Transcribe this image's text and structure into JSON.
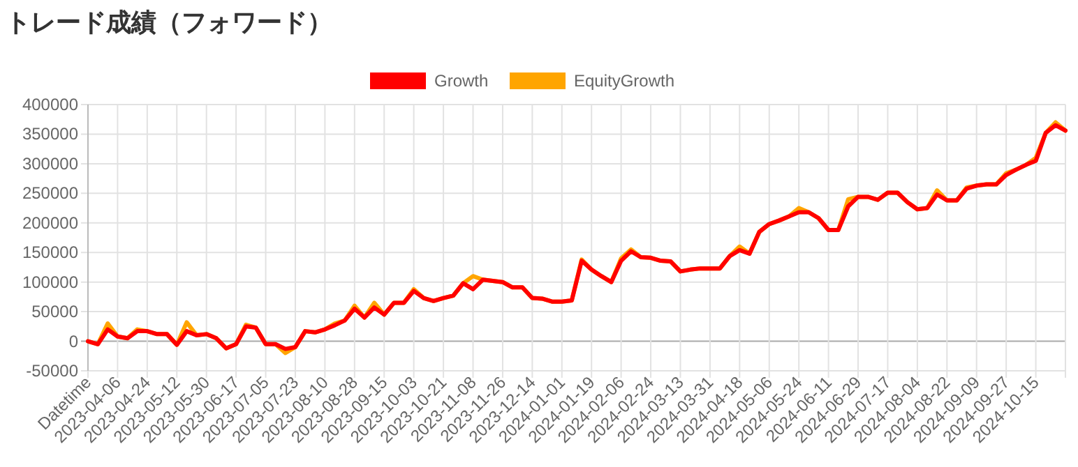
{
  "chart_data": {
    "type": "line",
    "title": "トレード成績（フォワード）",
    "categories": [
      "Datetime",
      null,
      null,
      "2023-04-06",
      null,
      null,
      "2023-04-24",
      null,
      null,
      "2023-05-12",
      null,
      null,
      "2023-05-30",
      null,
      null,
      "2023-06-17",
      null,
      null,
      "2023-07-05",
      null,
      null,
      "2023-07-23",
      null,
      null,
      "2023-08-10",
      null,
      null,
      "2023-08-28",
      null,
      null,
      "2023-09-15",
      null,
      null,
      "2023-10-03",
      null,
      null,
      "2023-10-21",
      null,
      null,
      "2023-11-08",
      null,
      null,
      "2023-11-26",
      null,
      null,
      "2023-12-14",
      null,
      null,
      "2024-01-01",
      null,
      null,
      "2024-01-19",
      null,
      null,
      "2024-02-06",
      null,
      null,
      "2024-02-24",
      null,
      null,
      "2024-03-13",
      null,
      null,
      "2024-03-31",
      null,
      null,
      "2024-04-18",
      null,
      null,
      "2024-05-06",
      null,
      null,
      "2024-05-24",
      null,
      null,
      "2024-06-11",
      null,
      null,
      "2024-06-29",
      null,
      null,
      "2024-07-17",
      null,
      null,
      "2024-08-04",
      null,
      null,
      "2024-08-22",
      null,
      null,
      "2024-09-09",
      null,
      null,
      "2024-09-27",
      null,
      null,
      "2024-10-15",
      null,
      null,
      null
    ],
    "series": [
      {
        "name": "Growth",
        "color": "#ff0000",
        "values": [
          0,
          -5000,
          20000,
          8000,
          5000,
          17000,
          17000,
          12000,
          12000,
          -6000,
          17000,
          10000,
          12000,
          5000,
          -12000,
          -5000,
          25000,
          23000,
          -5000,
          -5000,
          -13000,
          -10000,
          17000,
          15000,
          20000,
          27000,
          35000,
          55000,
          40000,
          57000,
          45000,
          65000,
          65000,
          85000,
          73000,
          68000,
          73000,
          77000,
          98000,
          88000,
          104000,
          102000,
          100000,
          91000,
          91000,
          73000,
          72000,
          67000,
          67000,
          69000,
          136000,
          121000,
          110000,
          100000,
          136000,
          152000,
          142000,
          141000,
          136000,
          135000,
          118000,
          121000,
          123000,
          123000,
          123000,
          144000,
          154000,
          148000,
          185000,
          198000,
          204000,
          211000,
          218000,
          218000,
          208000,
          188000,
          188000,
          228000,
          244000,
          244000,
          239000,
          251000,
          251000,
          235000,
          223000,
          225000,
          248000,
          238000,
          238000,
          258000,
          263000,
          265000,
          265000,
          281000,
          290000,
          298000,
          305000,
          352000,
          365000,
          356000
        ]
      },
      {
        "name": "EquityGrowth",
        "color": "#ffa500",
        "values": [
          0,
          -5000,
          30000,
          8000,
          5000,
          20000,
          17000,
          12000,
          12000,
          -6000,
          32000,
          10000,
          12000,
          5000,
          -12000,
          -5000,
          28000,
          23000,
          -5000,
          -5000,
          -20000,
          -10000,
          17000,
          15000,
          20000,
          30000,
          35000,
          60000,
          40000,
          65000,
          45000,
          65000,
          65000,
          88000,
          73000,
          68000,
          73000,
          77000,
          98000,
          110000,
          104000,
          102000,
          100000,
          91000,
          91000,
          73000,
          72000,
          67000,
          67000,
          69000,
          138000,
          121000,
          110000,
          100000,
          140000,
          155000,
          142000,
          141000,
          136000,
          135000,
          118000,
          121000,
          123000,
          123000,
          123000,
          144000,
          160000,
          148000,
          185000,
          198000,
          204000,
          211000,
          225000,
          218000,
          208000,
          188000,
          188000,
          240000,
          244000,
          244000,
          239000,
          251000,
          251000,
          235000,
          223000,
          225000,
          255000,
          238000,
          238000,
          260000,
          263000,
          265000,
          265000,
          284000,
          290000,
          298000,
          310000,
          352000,
          370000,
          356000
        ]
      }
    ],
    "ylim": [
      -50000,
      400000
    ],
    "yticks": [
      -50000,
      0,
      50000,
      100000,
      150000,
      200000,
      250000,
      300000,
      350000,
      400000
    ],
    "grid": true,
    "legend": "top"
  }
}
